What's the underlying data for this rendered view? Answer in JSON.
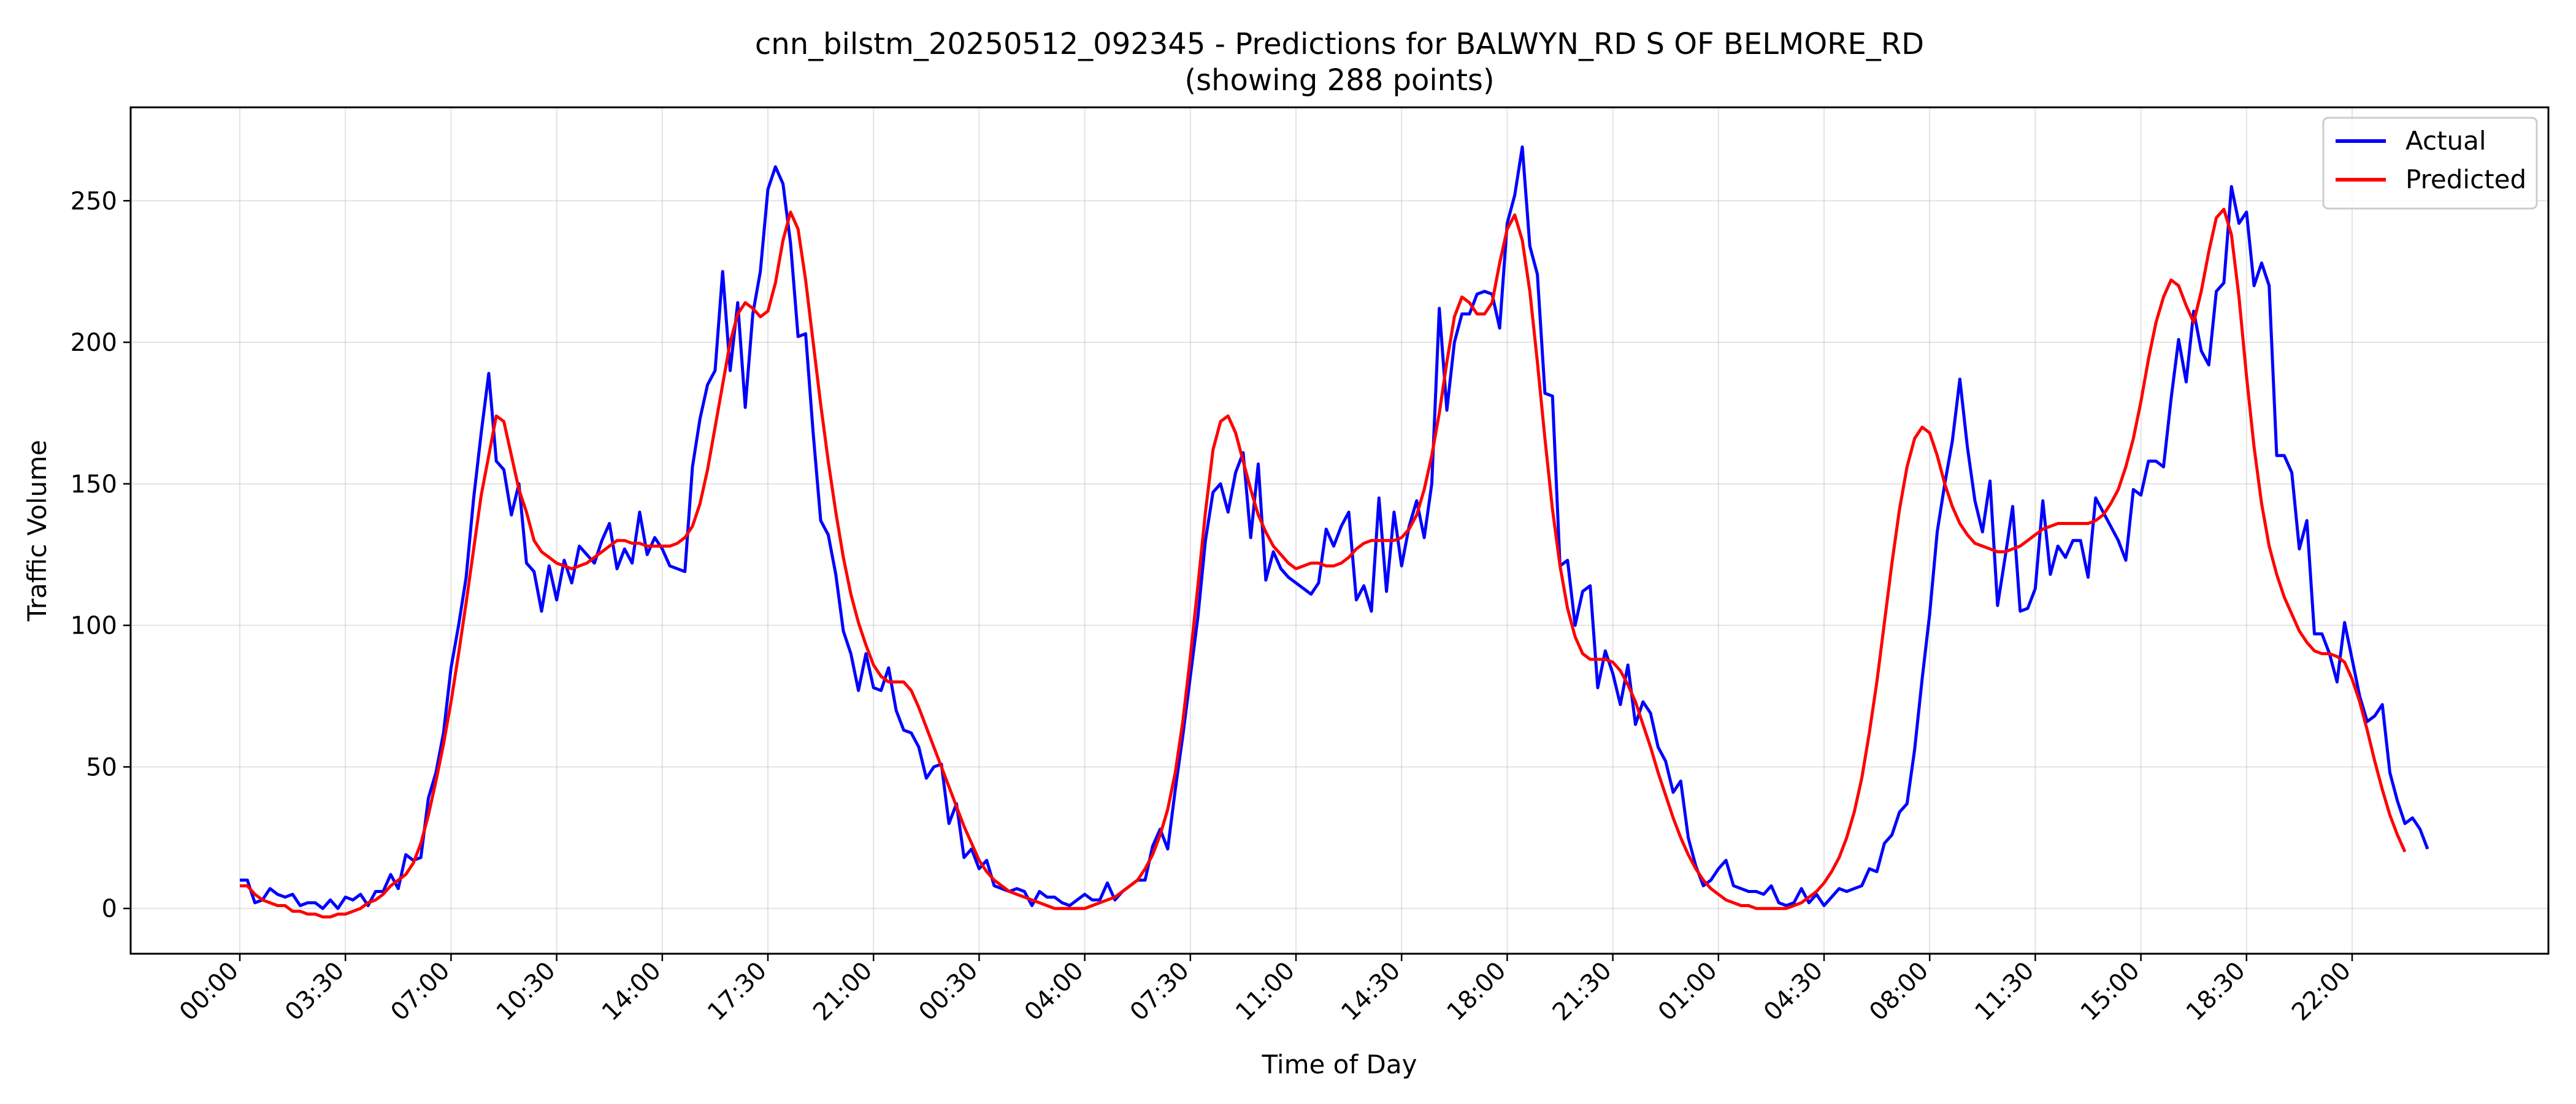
{
  "chart_data": {
    "type": "line",
    "title_line1": "cnn_bilstm_20250512_092345 - Predictions for BALWYN_RD S OF BELMORE_RD",
    "title_line2": "(showing 288 points)",
    "xlabel": "Time of Day",
    "ylabel": "Traffic Volume",
    "x_ticks": [
      "00:00",
      "03:30",
      "07:00",
      "10:30",
      "14:00",
      "17:30",
      "21:00",
      "00:30",
      "04:00",
      "07:30",
      "11:00",
      "14:30",
      "18:00",
      "21:30",
      "01:00",
      "04:30",
      "08:00",
      "11:30",
      "15:00",
      "18:30",
      "22:00"
    ],
    "x_tick_index_step": 14,
    "n_points": 288,
    "y_ticks": [
      0,
      50,
      100,
      150,
      200,
      250
    ],
    "ylim": [
      -16,
      283
    ],
    "grid": true,
    "legend_position": "top-right",
    "series": [
      {
        "name": "Actual",
        "color": "#0000ff",
        "values": [
          10,
          10,
          2,
          3,
          7,
          5,
          4,
          5,
          1,
          2,
          2,
          0,
          3,
          0,
          4,
          3,
          5,
          1,
          6,
          6,
          12,
          7,
          19,
          17,
          18,
          39,
          48,
          62,
          85,
          100,
          117,
          145,
          168,
          189,
          158,
          155,
          139,
          150,
          122,
          119,
          105,
          121,
          109,
          123,
          115,
          128,
          125,
          122,
          130,
          136,
          120,
          127,
          122,
          140,
          125,
          131,
          127,
          121,
          120,
          119,
          156,
          173,
          185,
          190,
          225,
          190,
          214,
          177,
          210,
          225,
          254,
          262,
          256,
          235,
          202,
          203,
          168,
          137,
          132,
          118,
          98,
          90,
          77,
          90,
          78,
          77,
          85,
          70,
          63,
          62,
          57,
          46,
          50,
          51,
          30,
          37,
          18,
          21,
          14,
          17,
          8,
          7,
          6,
          7,
          6,
          1,
          6,
          4,
          4,
          2,
          1,
          3,
          5,
          3,
          3,
          9,
          3,
          6,
          8,
          10,
          10,
          22,
          28,
          21,
          42,
          61,
          82,
          103,
          130,
          147,
          150,
          140,
          154,
          161,
          131,
          157,
          116,
          126,
          120,
          117,
          115,
          113,
          111,
          115,
          134,
          128,
          135,
          140,
          109,
          114,
          105,
          145,
          112,
          140,
          121,
          135,
          144,
          131,
          150,
          212,
          176,
          200,
          210,
          210,
          217,
          218,
          217,
          205,
          242,
          252,
          269,
          234,
          224,
          182,
          181,
          121,
          123,
          100,
          112,
          114,
          78,
          91,
          83,
          72,
          86,
          65,
          73,
          69,
          57,
          52,
          41,
          45,
          25,
          15,
          8,
          10,
          14,
          17,
          8,
          7,
          6,
          6,
          5,
          8,
          2,
          1,
          2,
          7,
          2,
          5,
          1,
          4,
          7,
          6,
          7,
          8,
          14,
          13,
          23,
          26,
          34,
          37,
          56,
          81,
          104,
          133,
          150,
          165,
          187,
          163,
          144,
          133,
          151,
          107,
          124,
          142,
          105,
          106,
          113,
          144,
          118,
          128,
          124,
          130,
          130,
          117,
          145,
          140,
          135,
          130,
          123,
          148,
          146,
          158,
          158,
          156,
          180,
          201,
          186,
          211,
          197,
          192,
          218,
          221,
          255,
          242,
          246,
          220,
          228,
          220,
          160,
          160,
          154,
          127,
          137,
          97,
          97,
          90,
          80,
          101,
          88,
          75,
          66,
          68,
          72,
          48,
          38,
          30,
          32,
          28,
          21
        ]
      },
      {
        "name": "Predicted",
        "color": "#ff0000",
        "values": [
          8,
          8,
          5,
          3,
          2,
          1,
          1,
          -1,
          -1,
          -2,
          -2,
          -3,
          -3,
          -2,
          -2,
          -1,
          0,
          2,
          3,
          5,
          8,
          10,
          12,
          16,
          23,
          33,
          45,
          58,
          73,
          90,
          108,
          127,
          146,
          160,
          174,
          172,
          160,
          148,
          140,
          130,
          126,
          124,
          122,
          121,
          120,
          121,
          122,
          124,
          126,
          128,
          130,
          130,
          129,
          129,
          128,
          128,
          128,
          128,
          129,
          131,
          135,
          143,
          155,
          170,
          185,
          200,
          210,
          214,
          212,
          209,
          211,
          221,
          236,
          246,
          240,
          222,
          200,
          178,
          158,
          140,
          124,
          111,
          101,
          93,
          86,
          82,
          80,
          80,
          80,
          77,
          71,
          64,
          57,
          50,
          43,
          36,
          29,
          23,
          17,
          13,
          10,
          8,
          6,
          5,
          4,
          3,
          2,
          1,
          0,
          0,
          0,
          0,
          0,
          1,
          2,
          3,
          4,
          6,
          8,
          10,
          14,
          19,
          26,
          35,
          48,
          66,
          89,
          114,
          140,
          162,
          172,
          174,
          168,
          158,
          148,
          139,
          133,
          128,
          125,
          122,
          120,
          121,
          122,
          122,
          121,
          121,
          122,
          124,
          127,
          129,
          130,
          130,
          130,
          130,
          131,
          134,
          139,
          148,
          160,
          175,
          193,
          209,
          216,
          214,
          210,
          210,
          214,
          228,
          240,
          245,
          236,
          218,
          193,
          166,
          141,
          121,
          106,
          96,
          90,
          88,
          88,
          88,
          87,
          84,
          79,
          73,
          65,
          57,
          48,
          40,
          32,
          25,
          19,
          14,
          10,
          7,
          5,
          3,
          2,
          1,
          1,
          0,
          0,
          0,
          0,
          0,
          1,
          2,
          4,
          6,
          9,
          13,
          18,
          25,
          34,
          46,
          62,
          80,
          101,
          122,
          141,
          156,
          166,
          170,
          168,
          160,
          150,
          142,
          136,
          132,
          129,
          128,
          127,
          126,
          126,
          127,
          128,
          130,
          132,
          134,
          135,
          136,
          136,
          136,
          136,
          136,
          137,
          139,
          143,
          148,
          156,
          166,
          179,
          194,
          207,
          216,
          222,
          220,
          213,
          207,
          218,
          232,
          244,
          247,
          238,
          216,
          188,
          163,
          143,
          128,
          118,
          110,
          104,
          98,
          94,
          91,
          90,
          90,
          89,
          87,
          81,
          73,
          63,
          52,
          42,
          33,
          26,
          20
        ]
      }
    ]
  }
}
